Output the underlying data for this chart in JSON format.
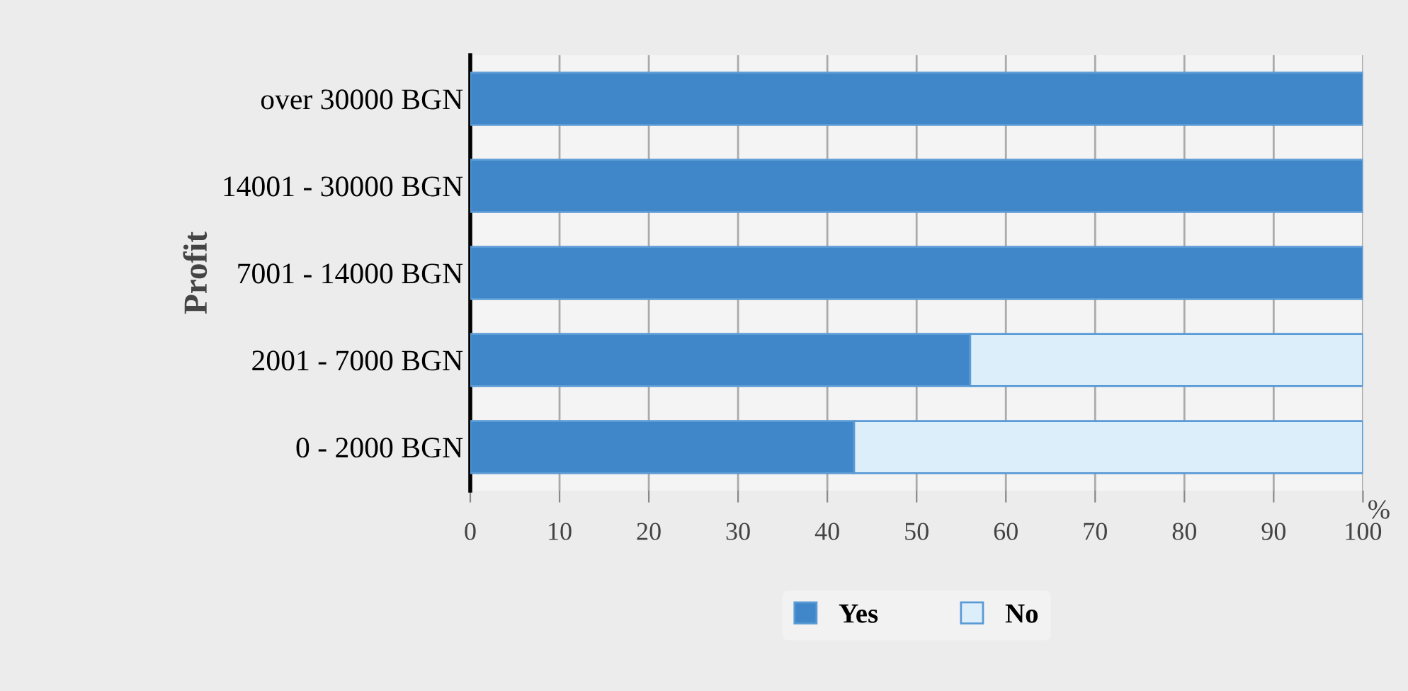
{
  "chart_data": {
    "type": "bar",
    "orientation": "horizontal",
    "stacked": true,
    "categories": [
      "over 30000 BGN",
      "14001 - 30000 BGN",
      "7001 - 14000 BGN",
      "2001 - 7000 BGN",
      "0 - 2000 BGN"
    ],
    "series": [
      {
        "name": "Yes",
        "color": "#3f87c8",
        "values": [
          100,
          100,
          100,
          56,
          43
        ]
      },
      {
        "name": "No",
        "color": "#ddeefb",
        "values": [
          0,
          0,
          0,
          44,
          57
        ]
      }
    ],
    "xlim": [
      0,
      100
    ],
    "xticks": [
      0,
      10,
      20,
      30,
      40,
      50,
      60,
      70,
      80,
      90,
      100
    ],
    "xlabel": "%",
    "ylabel": "Profit",
    "grid": "x",
    "legend": "bottom"
  }
}
